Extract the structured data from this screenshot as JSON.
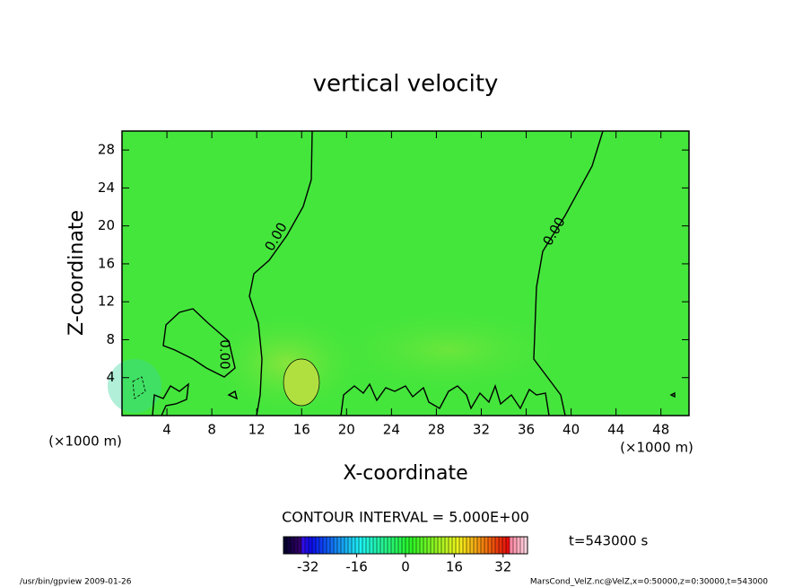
{
  "chart_data": {
    "type": "contour",
    "title": "vertical velocity",
    "x_label": "X-coordinate",
    "y_label": "Z-coordinate",
    "x_unit": "(×1000 m)",
    "y_unit": "(×1000 m)",
    "xlim": [
      0,
      50.5
    ],
    "ylim": [
      0,
      30
    ],
    "xticks": [
      4,
      8,
      12,
      16,
      20,
      24,
      28,
      32,
      36,
      40,
      44,
      48
    ],
    "yticks": [
      4,
      8,
      12,
      16,
      20,
      24,
      28
    ],
    "contour_labels": [
      "0.00",
      "0.00",
      "0.00"
    ],
    "contour_interval_label": "CONTOUR INTERVAL = 5.000E+00",
    "time_label": "t=543000 s",
    "colorbar": {
      "clim": [
        -40,
        40
      ],
      "ticks": [
        -32,
        -16,
        0,
        16,
        32
      ]
    }
  },
  "footer": {
    "left": "/usr/bin/gpview  2009-01-26",
    "right": "MarsCond_VelZ.nc@VelZ,x=0:50000,z=0:30000,t=543000"
  }
}
